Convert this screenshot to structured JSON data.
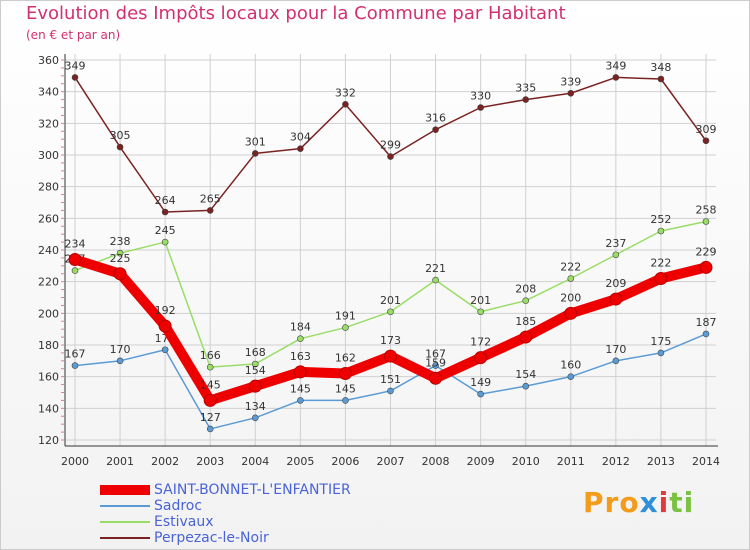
{
  "title": "Evolution des Impôts locaux pour la Commune par Habitant",
  "subtitle": "(en € et par an)",
  "brand": {
    "text": "Proxiti",
    "parts": [
      "Pro",
      "x",
      "i",
      "ti"
    ]
  },
  "colors": {
    "title": "#d23070",
    "grid": "#d0d0d0",
    "axis": "#333333",
    "legend_text": "#4a63d8"
  },
  "chart_data": {
    "type": "line",
    "title": "Evolution des Impôts locaux pour la Commune par Habitant",
    "subtitle": "(en € et par an)",
    "x": [
      "2000",
      "2001",
      "2002",
      "2003",
      "2004",
      "2005",
      "2006",
      "2007",
      "2008",
      "2009",
      "2010",
      "2011",
      "2012",
      "2013",
      "2014"
    ],
    "ylim": [
      120,
      360
    ],
    "yticks": [
      120,
      140,
      160,
      180,
      200,
      220,
      240,
      260,
      280,
      300,
      320,
      340,
      360
    ],
    "grid": true,
    "legend_position": "bottom-left",
    "series": [
      {
        "name": "SAINT-BONNET-L'ENFANTIER",
        "color": "#ee0000",
        "values": [
          234,
          225,
          192,
          145,
          154,
          163,
          162,
          173,
          159,
          172,
          185,
          200,
          209,
          222,
          229
        ]
      },
      {
        "name": "Sadroc",
        "color": "#5b9bd5",
        "values": [
          167,
          170,
          177,
          127,
          134,
          145,
          145,
          151,
          167,
          149,
          154,
          160,
          170,
          175,
          187
        ]
      },
      {
        "name": "Estivaux",
        "color": "#99dd66",
        "values": [
          227,
          238,
          245,
          166,
          168,
          184,
          191,
          201,
          221,
          201,
          208,
          222,
          237,
          252,
          258
        ]
      },
      {
        "name": "Perpezac-le-Noir",
        "color": "#7a2222",
        "values": [
          349,
          305,
          264,
          265,
          301,
          304,
          332,
          299,
          316,
          330,
          335,
          339,
          349,
          348,
          309
        ]
      }
    ]
  }
}
